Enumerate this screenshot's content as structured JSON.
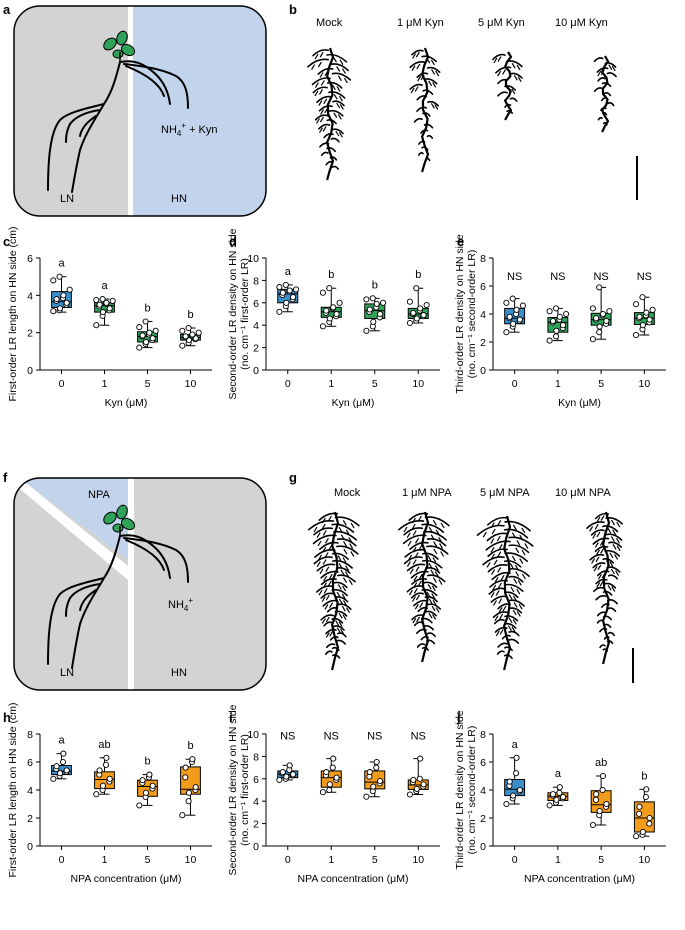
{
  "colors": {
    "blue": "#3a8fcb",
    "green": "#2fa35a",
    "orange": "#f39b1b",
    "ln_bg": "#d3d3d3",
    "hn_bg": "#c2d4ec",
    "leaf": "#2fa35a"
  },
  "panel_letters": [
    "a",
    "b",
    "c",
    "d",
    "e",
    "f",
    "g",
    "h",
    "i",
    "j"
  ],
  "schematics": {
    "a": {
      "ln_label": "LN",
      "hn_label": "HN",
      "treatment": "NH",
      "treatment_sup": "4",
      "treatment_sup2": "+",
      "treatment_suffix": " + Kyn"
    },
    "f": {
      "ln_label": "LN",
      "hn_label": "HN",
      "treatment": "NH",
      "treatment_sup": "4",
      "treatment_sup2": "+",
      "npa_label": "NPA"
    }
  },
  "photo_labels": {
    "b": [
      "Mock",
      "1 μM Kyn",
      "5 μM Kyn",
      "10 μM Kyn"
    ],
    "g": [
      "Mock",
      "1 μM NPA",
      "5 μM NPA",
      "10 μM NPA"
    ]
  },
  "chart_data": [
    {
      "id": "c",
      "type": "box",
      "ylabel": "First-order LR length on HN side (cm)",
      "ylabel2": "",
      "xlabel": "Kyn (μM)",
      "categories": [
        "0",
        "1",
        "5",
        "10"
      ],
      "ylim": [
        0,
        6
      ],
      "yticks": [
        0,
        2,
        4,
        6
      ],
      "colors": [
        "blue",
        "green",
        "green",
        "green"
      ],
      "sig": [
        "a",
        "a",
        "b",
        "b"
      ],
      "boxes": [
        {
          "min": 3.1,
          "q1": 3.35,
          "median": 3.65,
          "q3": 4.2,
          "max": 5.0,
          "points": [
            3.15,
            3.2,
            3.3,
            3.5,
            3.6,
            3.7,
            3.8,
            3.85,
            4.0,
            4.3,
            4.8,
            5.0
          ]
        },
        {
          "min": 2.4,
          "q1": 3.1,
          "median": 3.45,
          "q3": 3.6,
          "max": 3.8,
          "points": [
            2.4,
            2.9,
            3.1,
            3.2,
            3.3,
            3.4,
            3.5,
            3.55,
            3.6,
            3.7,
            3.75,
            3.8
          ]
        },
        {
          "min": 1.2,
          "q1": 1.5,
          "median": 1.8,
          "q3": 2.05,
          "max": 2.6,
          "points": [
            1.2,
            1.4,
            1.5,
            1.6,
            1.7,
            1.8,
            1.85,
            1.9,
            2.0,
            2.1,
            2.3,
            2.6
          ]
        },
        {
          "min": 1.3,
          "q1": 1.6,
          "median": 1.75,
          "q3": 1.9,
          "max": 2.25,
          "points": [
            1.3,
            1.45,
            1.6,
            1.65,
            1.7,
            1.75,
            1.8,
            1.85,
            1.9,
            2.0,
            2.1,
            2.25
          ]
        }
      ]
    },
    {
      "id": "d",
      "type": "box",
      "ylabel": "Second-order LR density on HN side",
      "ylabel2": "(no. cm⁻¹ first-order LR)",
      "xlabel": "Kyn (μM)",
      "categories": [
        "0",
        "1",
        "5",
        "10"
      ],
      "ylim": [
        0,
        10
      ],
      "yticks": [
        0,
        2,
        4,
        6,
        8,
        10
      ],
      "colors": [
        "blue",
        "green",
        "green",
        "green"
      ],
      "sig": [
        "a",
        "b",
        "b",
        "b"
      ],
      "boxes": [
        {
          "min": 5.2,
          "q1": 6.0,
          "median": 6.8,
          "q3": 7.2,
          "max": 7.6,
          "points": [
            5.2,
            5.7,
            6.0,
            6.3,
            6.5,
            6.7,
            6.9,
            7.0,
            7.1,
            7.2,
            7.4,
            7.6
          ]
        },
        {
          "min": 3.9,
          "q1": 4.7,
          "median": 5.2,
          "q3": 5.6,
          "max": 7.3,
          "points": [
            3.9,
            4.3,
            4.6,
            4.8,
            5.0,
            5.1,
            5.3,
            5.5,
            5.6,
            6.0,
            6.9,
            7.3
          ]
        },
        {
          "min": 3.5,
          "q1": 4.6,
          "median": 5.3,
          "q3": 5.9,
          "max": 6.4,
          "points": [
            3.5,
            3.9,
            4.3,
            4.7,
            5.0,
            5.2,
            5.4,
            5.6,
            5.9,
            6.0,
            6.3,
            6.4
          ]
        },
        {
          "min": 4.2,
          "q1": 4.6,
          "median": 5.0,
          "q3": 5.5,
          "max": 7.3,
          "points": [
            4.2,
            4.4,
            4.6,
            4.8,
            4.9,
            5.0,
            5.1,
            5.3,
            5.5,
            5.8,
            6.1,
            7.3
          ]
        }
      ]
    },
    {
      "id": "e",
      "type": "box",
      "ylabel": "Third-order LR density on HN side",
      "ylabel2": "(no. cm⁻¹ second-order LR)",
      "xlabel": "Kyn (μM)",
      "categories": [
        "0",
        "1",
        "5",
        "10"
      ],
      "ylim": [
        0,
        8
      ],
      "yticks": [
        0,
        2,
        4,
        6,
        8
      ],
      "colors": [
        "blue",
        "green",
        "green",
        "green"
      ],
      "sig": [
        "NS",
        "NS",
        "NS",
        "NS"
      ],
      "boxes": [
        {
          "min": 2.7,
          "q1": 3.3,
          "median": 3.7,
          "q3": 4.4,
          "max": 5.1,
          "points": [
            2.7,
            3.1,
            3.3,
            3.5,
            3.6,
            3.7,
            3.8,
            4.0,
            4.3,
            4.6,
            4.8,
            5.1
          ]
        },
        {
          "min": 2.1,
          "q1": 2.7,
          "median": 3.4,
          "q3": 3.75,
          "max": 4.4,
          "points": [
            2.1,
            2.4,
            2.8,
            3.0,
            3.2,
            3.4,
            3.5,
            3.6,
            3.8,
            4.0,
            4.2,
            4.4
          ]
        },
        {
          "min": 2.2,
          "q1": 3.2,
          "median": 3.6,
          "q3": 4.05,
          "max": 5.9,
          "points": [
            2.2,
            2.7,
            3.1,
            3.3,
            3.5,
            3.6,
            3.7,
            3.9,
            4.0,
            4.2,
            4.4,
            5.9
          ]
        },
        {
          "min": 2.5,
          "q1": 3.25,
          "median": 3.7,
          "q3": 4.1,
          "max": 5.2,
          "points": [
            2.5,
            2.9,
            3.2,
            3.4,
            3.6,
            3.7,
            3.8,
            3.9,
            4.1,
            4.3,
            4.7,
            5.2
          ]
        }
      ]
    },
    {
      "id": "h",
      "type": "box",
      "ylabel": "First-order LR length on HN side (cm)",
      "ylabel2": "",
      "xlabel": "NPA concentration (μM)",
      "categories": [
        "0",
        "1",
        "5",
        "10"
      ],
      "ylim": [
        0,
        8
      ],
      "yticks": [
        0,
        2,
        4,
        6,
        8
      ],
      "colors": [
        "blue",
        "orange",
        "orange",
        "orange"
      ],
      "sig": [
        "a",
        "ab",
        "b",
        "b"
      ],
      "boxes": [
        {
          "min": 4.8,
          "q1": 5.1,
          "median": 5.35,
          "q3": 5.75,
          "max": 6.6,
          "points": [
            4.8,
            5.0,
            5.2,
            5.3,
            5.4,
            5.5,
            5.7,
            6.0,
            6.6
          ]
        },
        {
          "min": 3.7,
          "q1": 4.1,
          "median": 4.75,
          "q3": 5.3,
          "max": 6.3,
          "points": [
            3.7,
            4.0,
            4.3,
            4.6,
            4.8,
            5.1,
            5.4,
            5.8,
            6.3
          ]
        },
        {
          "min": 2.9,
          "q1": 3.55,
          "median": 4.25,
          "q3": 4.7,
          "max": 5.1,
          "points": [
            2.9,
            3.5,
            3.8,
            4.1,
            4.3,
            4.5,
            4.7,
            4.9,
            5.1
          ]
        },
        {
          "min": 2.2,
          "q1": 3.7,
          "median": 4.05,
          "q3": 5.65,
          "max": 6.2,
          "points": [
            2.2,
            3.2,
            3.8,
            4.0,
            4.2,
            4.9,
            5.6,
            6.0,
            6.2
          ]
        }
      ]
    },
    {
      "id": "i",
      "type": "box",
      "ylabel": "Second-order LR density on HN side",
      "ylabel2": "(no. cm⁻¹ first-order LR)",
      "xlabel": "NPA concentration (μM)",
      "categories": [
        "0",
        "1",
        "5",
        "10"
      ],
      "ylim": [
        0,
        10
      ],
      "yticks": [
        0,
        2,
        4,
        6,
        8,
        10
      ],
      "colors": [
        "blue",
        "orange",
        "orange",
        "orange"
      ],
      "sig": [
        "NS",
        "NS",
        "NS",
        "NS"
      ],
      "boxes": [
        {
          "min": 5.9,
          "q1": 6.1,
          "median": 6.4,
          "q3": 6.7,
          "max": 7.2,
          "points": [
            5.9,
            6.0,
            6.2,
            6.3,
            6.4,
            6.5,
            6.6,
            6.8,
            7.2
          ]
        },
        {
          "min": 4.8,
          "q1": 5.25,
          "median": 6.1,
          "q3": 6.7,
          "max": 7.8,
          "points": [
            4.8,
            5.0,
            5.5,
            5.9,
            6.1,
            6.3,
            6.6,
            7.0,
            7.8
          ]
        },
        {
          "min": 4.4,
          "q1": 5.1,
          "median": 5.7,
          "q3": 6.7,
          "max": 7.5,
          "points": [
            4.4,
            4.9,
            5.3,
            5.6,
            5.8,
            6.2,
            6.6,
            7.0,
            7.5
          ]
        },
        {
          "min": 4.6,
          "q1": 5.05,
          "median": 5.45,
          "q3": 5.9,
          "max": 7.8,
          "points": [
            4.6,
            4.9,
            5.1,
            5.3,
            5.5,
            5.7,
            5.9,
            6.0,
            7.8
          ]
        }
      ]
    },
    {
      "id": "j",
      "type": "box",
      "ylabel": "Third-order LR density on HN side",
      "ylabel2": "(no. cm⁻¹ second-order LR)",
      "xlabel": "NPA concentration (μM)",
      "categories": [
        "0",
        "1",
        "5",
        "10"
      ],
      "ylim": [
        0,
        8
      ],
      "yticks": [
        0,
        2,
        4,
        6,
        8
      ],
      "colors": [
        "blue",
        "orange",
        "orange",
        "orange"
      ],
      "sig": [
        "a",
        "a",
        "ab",
        "b"
      ],
      "boxes": [
        {
          "min": 3.0,
          "q1": 3.6,
          "median": 4.05,
          "q3": 4.75,
          "max": 6.3,
          "points": [
            3.0,
            3.4,
            3.6,
            3.9,
            4.0,
            4.3,
            4.6,
            5.2,
            6.3
          ]
        },
        {
          "min": 2.9,
          "q1": 3.25,
          "median": 3.55,
          "q3": 3.8,
          "max": 4.2,
          "points": [
            2.9,
            3.1,
            3.3,
            3.4,
            3.5,
            3.6,
            3.7,
            3.8,
            4.2
          ]
        },
        {
          "min": 1.5,
          "q1": 2.4,
          "median": 2.95,
          "q3": 3.95,
          "max": 5.0,
          "points": [
            1.5,
            2.2,
            2.5,
            2.8,
            3.0,
            3.3,
            3.7,
            4.0,
            5.0
          ]
        },
        {
          "min": 0.7,
          "q1": 1.0,
          "median": 2.0,
          "q3": 3.15,
          "max": 4.05,
          "points": [
            0.7,
            0.8,
            1.0,
            1.6,
            2.0,
            2.3,
            2.8,
            3.5,
            4.05
          ]
        }
      ]
    }
  ]
}
